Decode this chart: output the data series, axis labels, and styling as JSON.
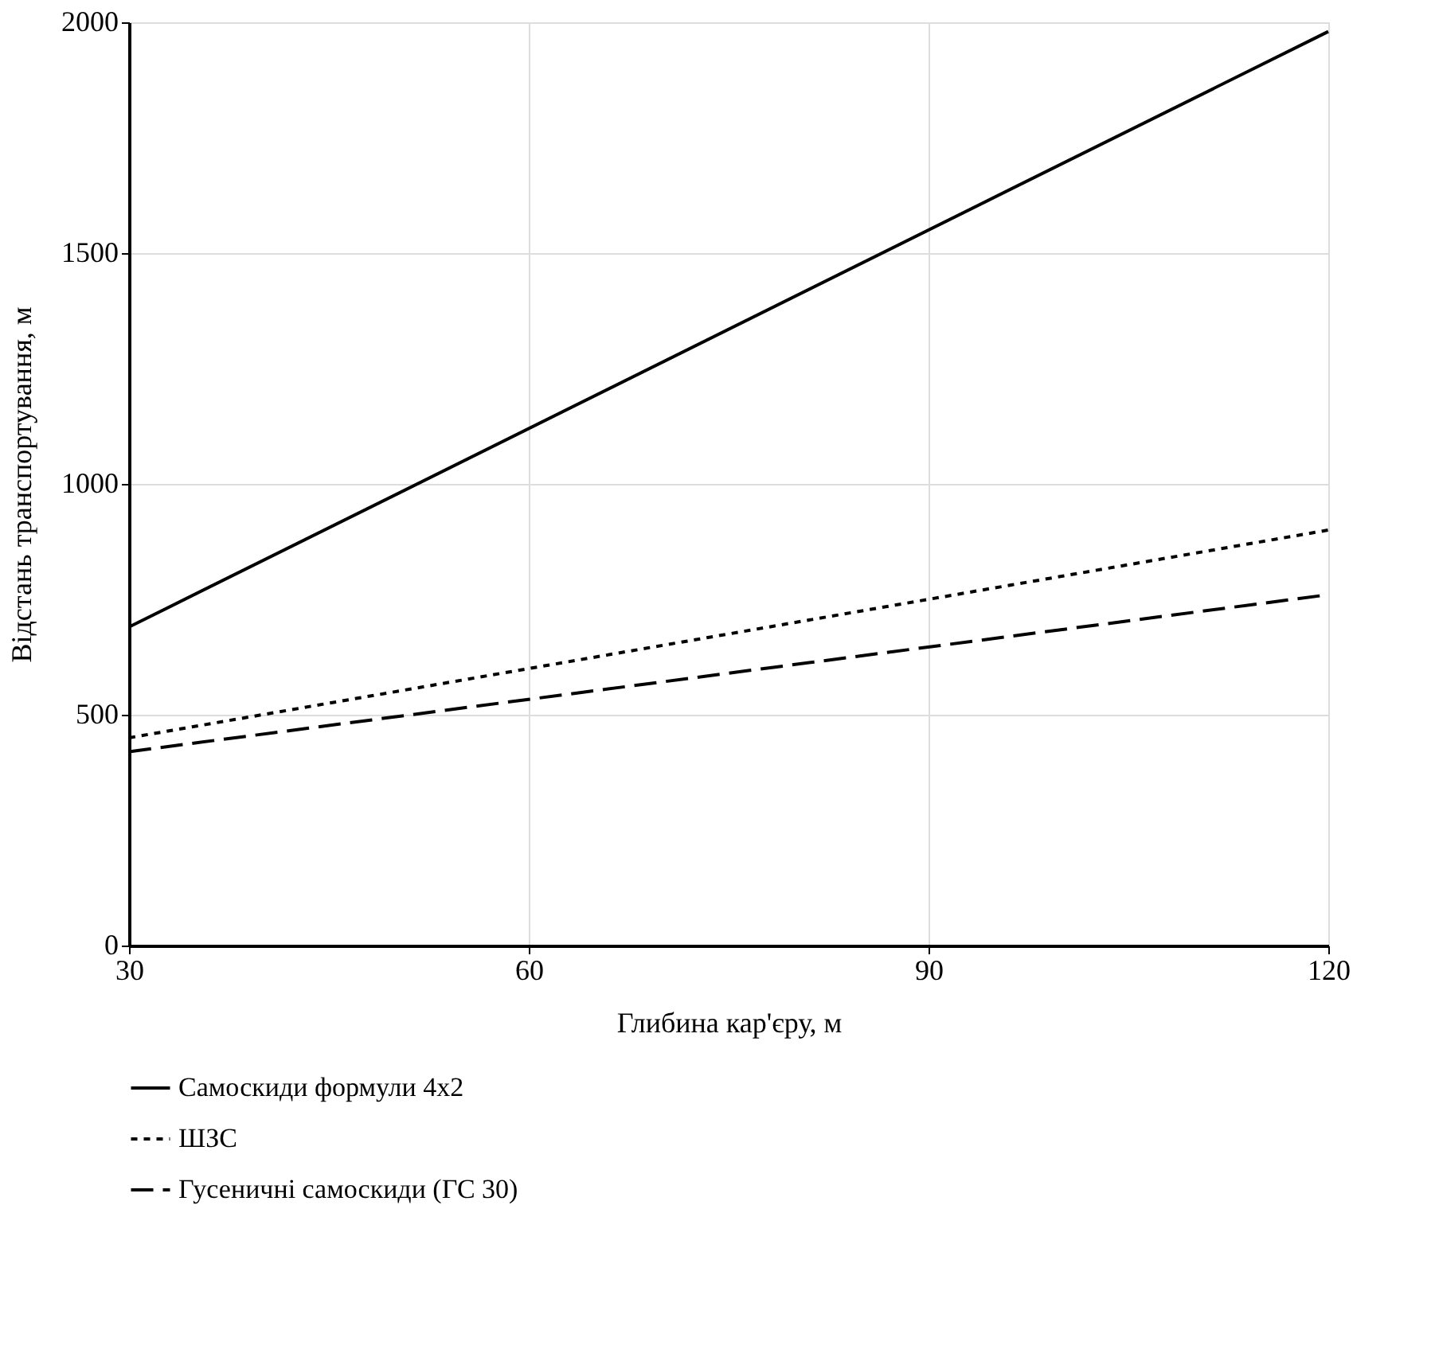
{
  "chart_data": {
    "type": "line",
    "xlabel": "Глибина кар'єру,  м",
    "ylabel": "Відстань транспортування,  м",
    "x": [
      30,
      120
    ],
    "series": [
      {
        "name": "Самоскиди формули 4х2",
        "color": "#000000",
        "values": [
          690,
          1980
        ],
        "line_style": "solid"
      },
      {
        "name": "ШЗС",
        "color": "#000000",
        "values": [
          450,
          900
        ],
        "line_style": "dotted"
      },
      {
        "name": "Гусеничні самоскиди (ГС 30)",
        "color": "#000000",
        "values": [
          420,
          760
        ],
        "line_style": "dashed"
      }
    ],
    "xlim": [
      30,
      120
    ],
    "xticks": [
      30,
      60,
      90,
      120
    ],
    "ylim": [
      0,
      2000
    ],
    "yticks": [
      0,
      500,
      1000,
      1500,
      2000
    ],
    "grid": true,
    "legend": "bottom",
    "marker": "none"
  }
}
